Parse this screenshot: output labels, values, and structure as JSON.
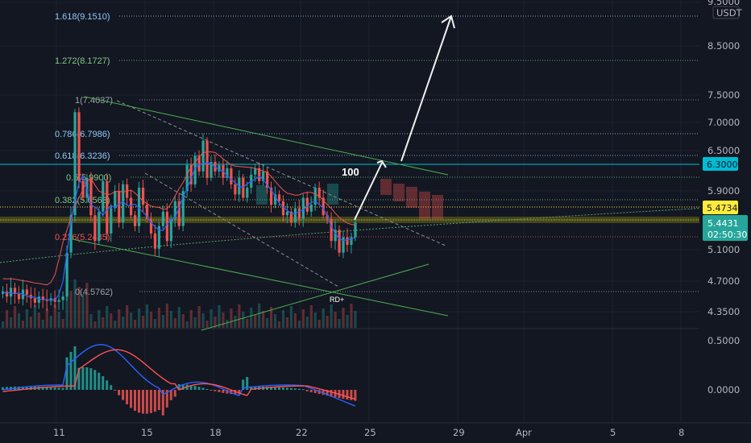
{
  "colors": {
    "background": "#131722",
    "up": "#26a69a",
    "down": "#ef5350",
    "macd_line": "#2962ff",
    "signal_line": "#ff5252",
    "fib_green": "#81c784",
    "fib_blue": "#90caf9",
    "fib_red": "#ef5350",
    "level_teal": "#00bcd4",
    "level_yellow": "#ffeb3b",
    "current_teal": "#26a69a"
  },
  "price_axis": {
    "currency": "USDT",
    "ticks": [
      "9.5000",
      "8.5000",
      "7.5000",
      "7.0000",
      "6.5000",
      "5.9000",
      "5.1000",
      "4.7000",
      "4.3500"
    ]
  },
  "macd_axis": {
    "ticks": [
      "0.5000",
      "0.0000"
    ]
  },
  "time_axis": {
    "ticks": [
      "11",
      "15",
      "18",
      "22",
      "25",
      "29",
      "Apr",
      "5",
      "8"
    ]
  },
  "price_tags": {
    "level_high": "6.3000",
    "level_mid": "5.4734",
    "last_price": "5.4431",
    "countdown": "02:50:30"
  },
  "fib_levels": [
    {
      "label": "1.618(9.1510)",
      "color": "blue"
    },
    {
      "label": "1.272(8.1727)",
      "color": "green"
    },
    {
      "label": "1(7.4037)",
      "color": "gray"
    },
    {
      "label": "0.786(6.7986)",
      "color": "blue"
    },
    {
      "label": "0.618(6.3236)",
      "color": "blue"
    },
    {
      "label": "0.5(5.9900)",
      "color": "green"
    },
    {
      "label": "0.382(5.6563)",
      "color": "green"
    },
    {
      "label": "0.236(5.2435)",
      "color": "red"
    },
    {
      "label": "0(4.5762)",
      "color": "gray"
    }
  ],
  "annotations": {
    "target_label": "100",
    "pattern_label": "RD+"
  },
  "chart_data": {
    "type": "candlestick",
    "symbol_quote": "USDT",
    "price_range": [
      4.2,
      9.6
    ],
    "candles_close": [
      4.58,
      4.52,
      4.62,
      4.55,
      4.49,
      4.6,
      4.54,
      4.5,
      4.45,
      4.52,
      4.48,
      4.47,
      4.5,
      4.46,
      4.48,
      4.52,
      5.05,
      5.55,
      7.2,
      6.05,
      5.8,
      6.1,
      5.55,
      5.2,
      5.6,
      6.05,
      5.3,
      5.65,
      5.9,
      5.45,
      6.0,
      5.8,
      5.55,
      5.4,
      5.95,
      5.7,
      5.5,
      5.3,
      5.1,
      5.4,
      5.6,
      5.2,
      5.5,
      5.75,
      5.4,
      5.9,
      6.3,
      6.0,
      6.45,
      6.2,
      6.7,
      6.1,
      6.35,
      6.2,
      6.3,
      6.1,
      6.25,
      6.0,
      5.85,
      6.1,
      5.8,
      5.95,
      6.15,
      6.25,
      6.05,
      6.2,
      5.95,
      5.7,
      5.85,
      5.75,
      5.55,
      5.6,
      5.45,
      5.65,
      5.5,
      5.8,
      5.6,
      5.7,
      5.95,
      5.8,
      5.55,
      5.5,
      5.2,
      5.35,
      5.05,
      5.25,
      5.15,
      5.25,
      5.45
    ],
    "macd_range": [
      -0.25,
      0.62
    ]
  }
}
